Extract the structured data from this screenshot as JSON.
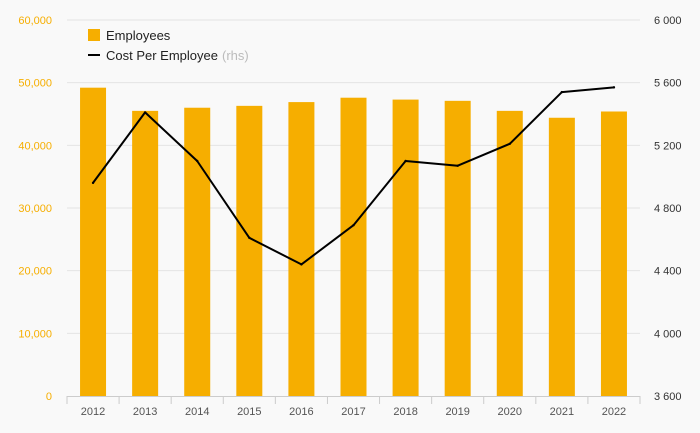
{
  "colors": {
    "bar": "#f6ae00",
    "line": "#000000",
    "left_axis_text": "#f6ae00",
    "grid": "#e4e4e4",
    "background": "#f9f9f9"
  },
  "legend": {
    "placement": "top-left",
    "bar_label": "Employees",
    "line_label": "Cost Per Employee",
    "line_note": "(rhs)"
  },
  "chart_data": {
    "type": "bar",
    "title": "",
    "xlabel": "",
    "ylabel": "",
    "categories": [
      "2012",
      "2013",
      "2014",
      "2015",
      "2016",
      "2017",
      "2018",
      "2019",
      "2020",
      "2021",
      "2022"
    ],
    "series": [
      {
        "name": "Employees",
        "type": "bar",
        "axis": "left",
        "values": [
          49200,
          45500,
          46000,
          46300,
          46900,
          47600,
          47300,
          47100,
          45500,
          44400,
          45400
        ]
      },
      {
        "name": "Cost Per Employee",
        "type": "line",
        "axis": "right",
        "values": [
          4960,
          5410,
          5100,
          4610,
          4440,
          4690,
          5100,
          5070,
          5210,
          5540,
          5570
        ]
      }
    ],
    "ylim": [
      0,
      60000
    ],
    "yticks": [
      0,
      10000,
      20000,
      30000,
      40000,
      50000,
      60000
    ],
    "ytick_labels": [
      "0",
      "10,000",
      "20,000",
      "30,000",
      "40,000",
      "50,000",
      "60,000"
    ],
    "y2lim": [
      3600,
      6000
    ],
    "y2ticks": [
      3600,
      4000,
      4400,
      4800,
      5200,
      5600,
      6000
    ],
    "y2tick_labels": [
      "3 600",
      "4 000",
      "4 400",
      "4 800",
      "5 200",
      "5 600",
      "6 000"
    ],
    "grid": true
  }
}
